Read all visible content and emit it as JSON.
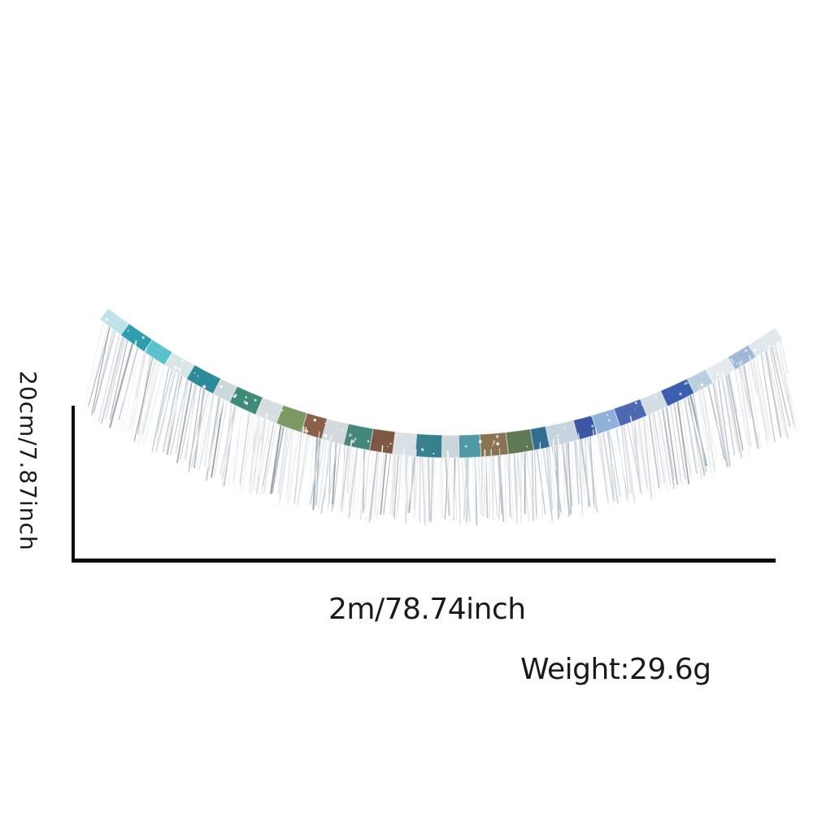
{
  "annotations": {
    "height": "20cm/7.87inch",
    "length": "2m/78.74inch",
    "weight": "Weight:29.6g"
  },
  "colors": {
    "text": "#1a1a1a",
    "dimension_line": "#0c0c0c",
    "background": "#ffffff"
  },
  "garland": {
    "description": "silver tinsel fringe garland with iridescent header band, draped in a downward curve",
    "curve": {
      "start": [
        128,
        386
      ],
      "control": [
        536,
        700
      ],
      "end": [
        958,
        410
      ]
    },
    "band_width_min": 17,
    "band_width_bulge": 11,
    "strand_count": 310,
    "strand_len_base": 88,
    "strand_len_end_extra": 26,
    "strand_lean": 0.36,
    "band_segments": [
      "#bfe3ea",
      "#2f9fb0",
      "#59c2cd",
      "#d8e6ea",
      "#2e8a9b",
      "#cdd8dc",
      "#3f8a79",
      "#d6dde0",
      "#7b9a62",
      "#8a604a",
      "#d2d8dc",
      "#44887b",
      "#7d5844",
      "#dadfe2",
      "#37808d",
      "#ccd5da",
      "#4f99a4",
      "#8a7352",
      "#5e7a55",
      "#2f6d95",
      "#c7d3dd",
      "#3c58a5",
      "#8fb0d8",
      "#4a69b0",
      "#d3dde6",
      "#3b5fae",
      "#b9cfe0",
      "#e2e9ef",
      "#9fb9d6",
      "#dfe8ee"
    ],
    "fringe_palette": [
      "#f4f6f8",
      "#e8ebee",
      "#dde1e5",
      "#cfd5da",
      "#c0c8ce",
      "#b2bcc3",
      "#e2e6ea",
      "#f9fafb",
      "#c9d4de",
      "#a8b3bc",
      "#d7dce0",
      "#eef1f3",
      "#8d99a3"
    ],
    "sparkle_color": "#ffffff"
  }
}
